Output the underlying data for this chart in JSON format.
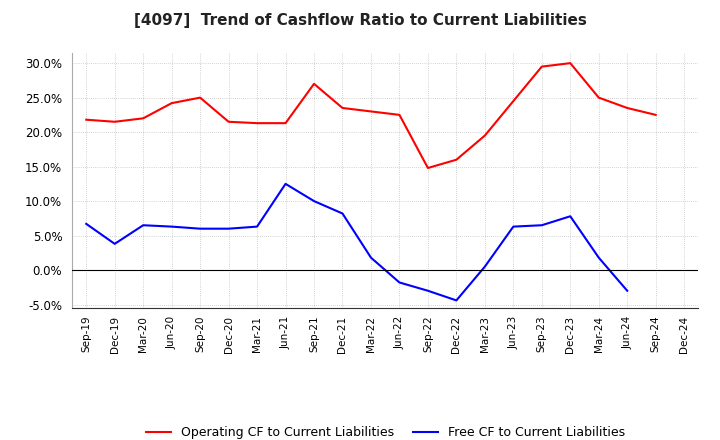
{
  "title": "[4097]  Trend of Cashflow Ratio to Current Liabilities",
  "x_labels": [
    "Sep-19",
    "Dec-19",
    "Mar-20",
    "Jun-20",
    "Sep-20",
    "Dec-20",
    "Mar-21",
    "Jun-21",
    "Sep-21",
    "Dec-21",
    "Mar-22",
    "Jun-22",
    "Sep-22",
    "Dec-22",
    "Mar-23",
    "Jun-23",
    "Sep-23",
    "Dec-23",
    "Mar-24",
    "Jun-24",
    "Sep-24",
    "Dec-24"
  ],
  "operating_cf": [
    0.218,
    0.215,
    0.22,
    0.242,
    0.25,
    0.215,
    0.213,
    0.213,
    0.27,
    0.235,
    0.23,
    0.225,
    0.148,
    0.16,
    0.195,
    0.245,
    0.295,
    0.3,
    0.25,
    0.235,
    0.225,
    null
  ],
  "free_cf": [
    0.067,
    0.038,
    0.065,
    0.063,
    0.06,
    0.06,
    0.063,
    0.125,
    0.1,
    0.082,
    0.018,
    -0.018,
    -0.03,
    -0.044,
    0.005,
    0.063,
    0.065,
    0.078,
    0.018,
    -0.03,
    null,
    null
  ],
  "operating_color": "#ff0000",
  "free_color": "#0000ff",
  "ylim": [
    -0.055,
    0.315
  ],
  "yticks": [
    -0.05,
    0.0,
    0.05,
    0.1,
    0.15,
    0.2,
    0.25,
    0.3
  ],
  "grid_color": "#aaaaaa",
  "background_color": "#ffffff",
  "legend_op": "Operating CF to Current Liabilities",
  "legend_free": "Free CF to Current Liabilities"
}
